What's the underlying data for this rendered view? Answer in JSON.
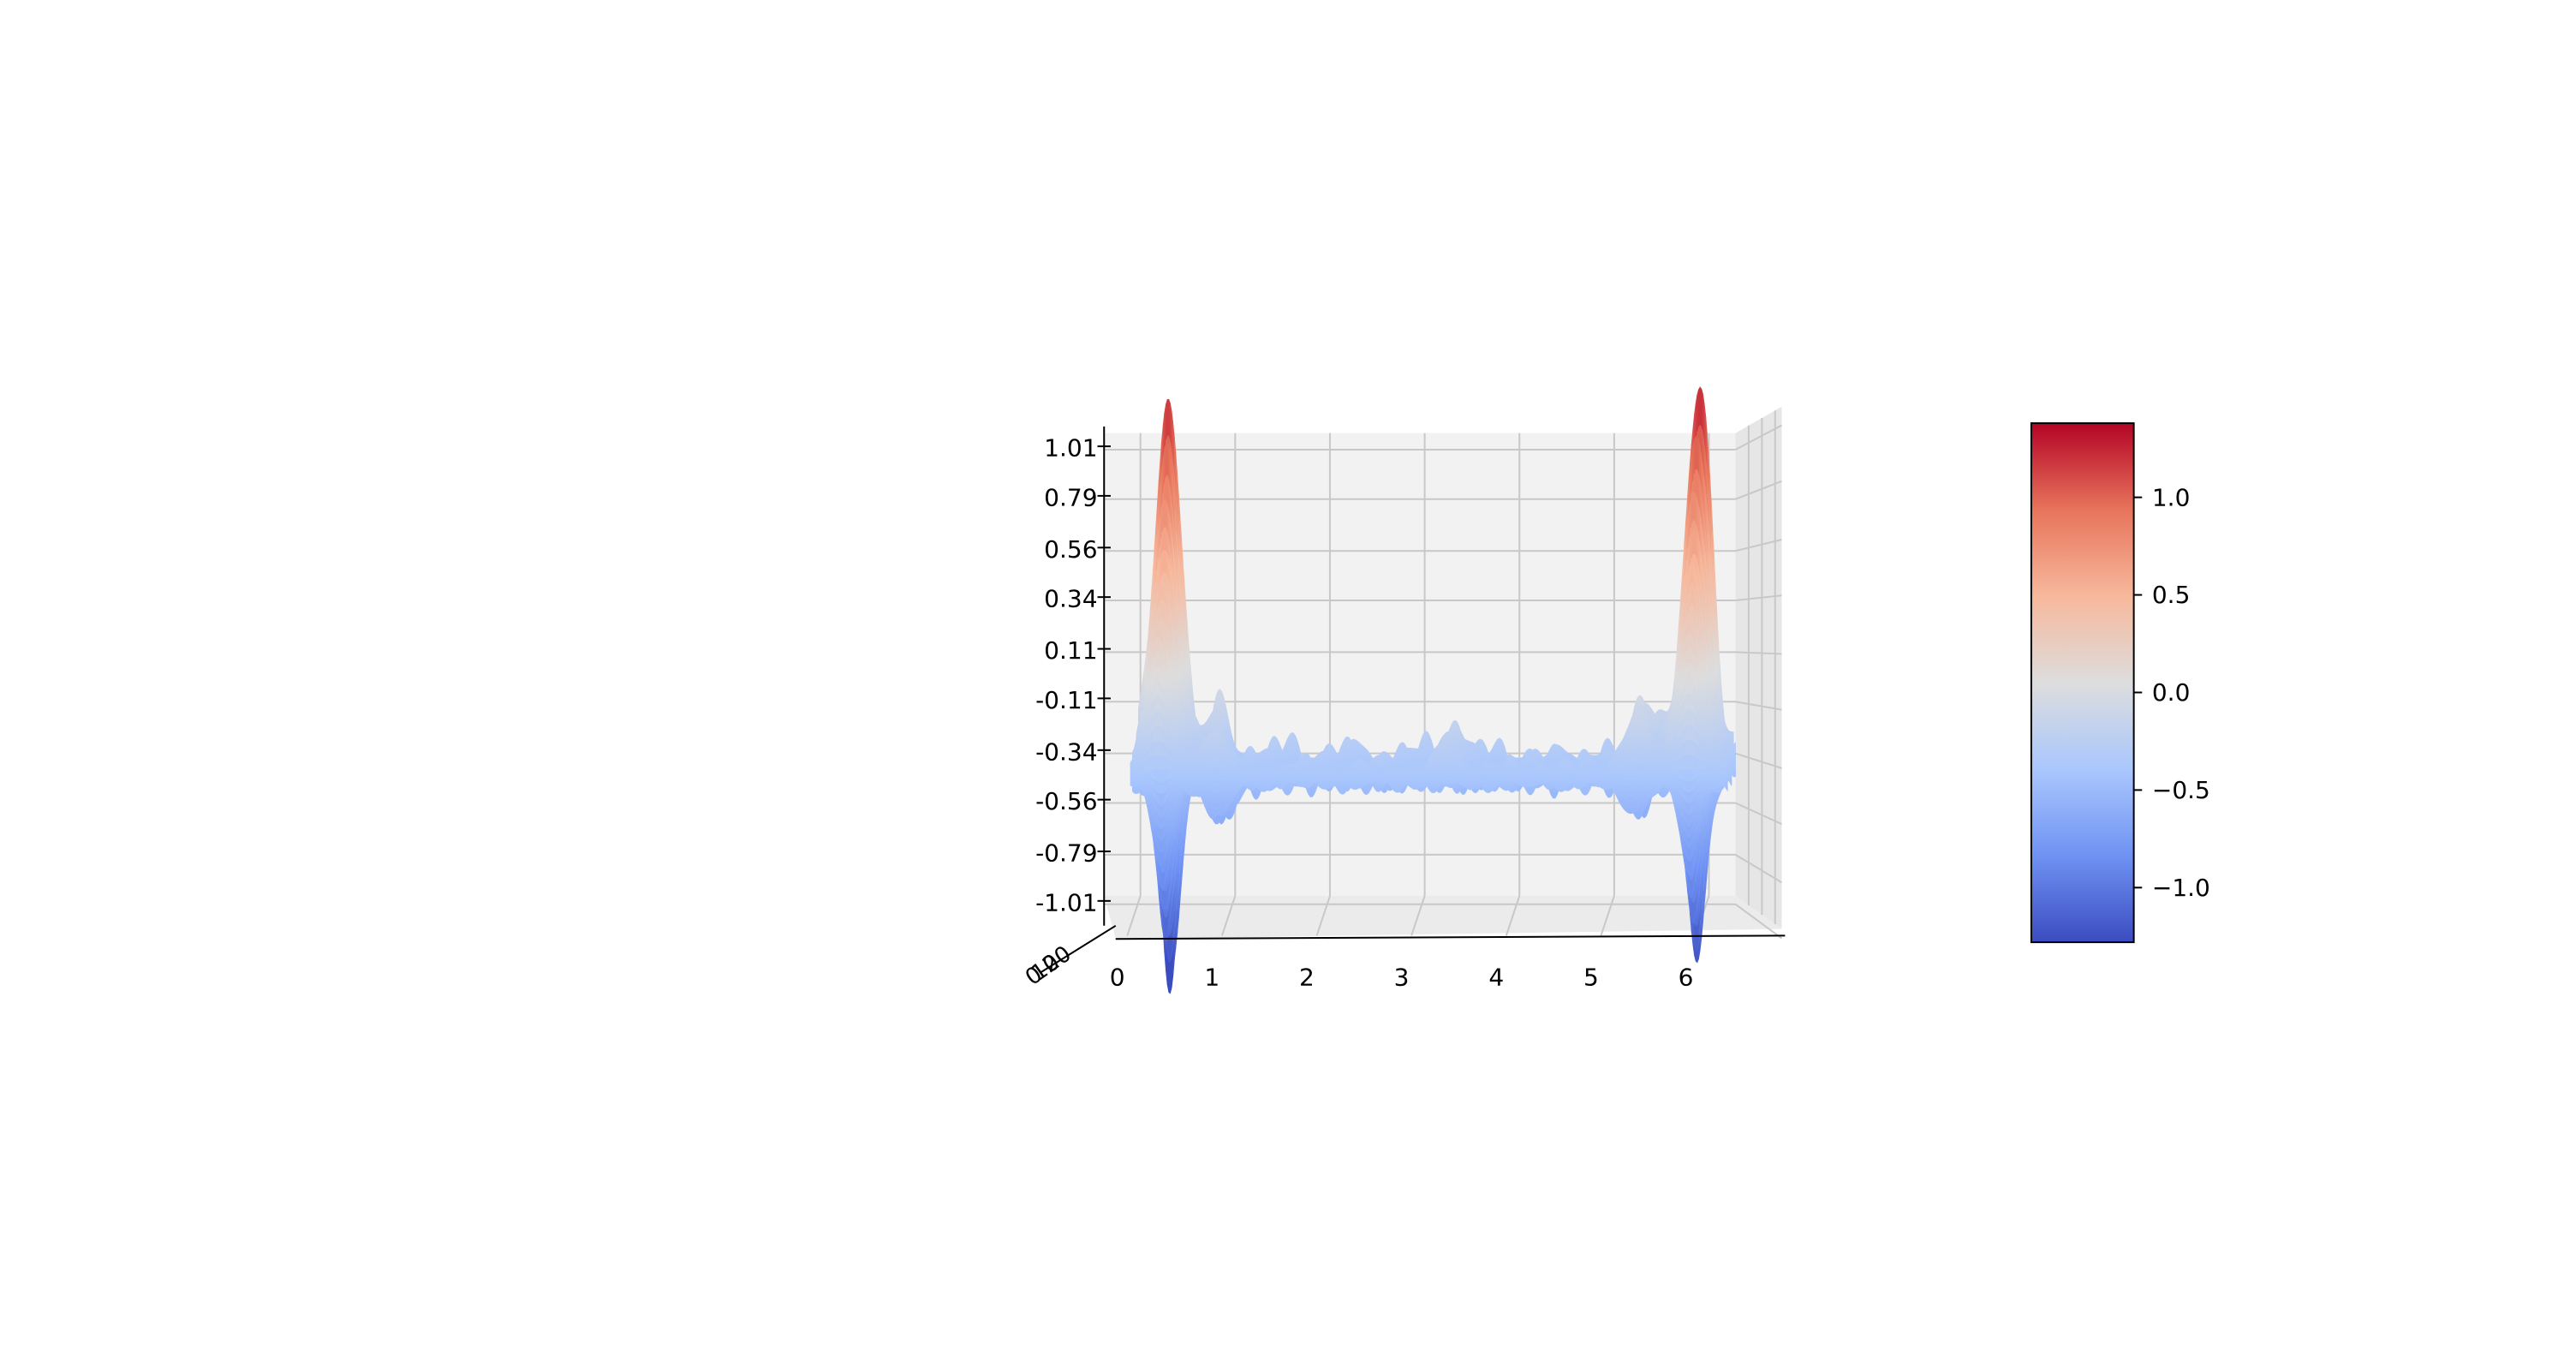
{
  "chart_data": {
    "type": "surface3d",
    "title": "",
    "x_ticks": [
      "0",
      "1",
      "2",
      "3",
      "4",
      "5",
      "6"
    ],
    "x_range": [
      0,
      6.28
    ],
    "y_ticks": [
      "0",
      "10",
      "20"
    ],
    "z_ticks": [
      "1.01",
      "0.79",
      "0.56",
      "0.34",
      "0.11",
      "-0.11",
      "-0.34",
      "-0.56",
      "-0.79",
      "-1.01"
    ],
    "z_range": [
      -1.28,
      1.38
    ],
    "peaks": [
      {
        "x": 0.3,
        "z_max": 1.22,
        "z_min": -1.28
      },
      {
        "x": 5.9,
        "z_max": 1.3,
        "z_min": -1.18
      }
    ],
    "baseline_z": -0.36,
    "colormap": "coolwarm",
    "colormap_colors": [
      "#3b4cc0",
      "#6f92f3",
      "#aac7fd",
      "#dddddd",
      "#f7b89c",
      "#e7745b",
      "#b40426"
    ],
    "colorbar": {
      "ticks": [
        "1.0",
        "0.5",
        "0.0",
        "−0.5",
        "−1.0"
      ],
      "tick_values": [
        1.0,
        0.5,
        0.0,
        -0.5,
        -1.0
      ],
      "range": [
        -1.28,
        1.38
      ]
    },
    "grid": true
  }
}
